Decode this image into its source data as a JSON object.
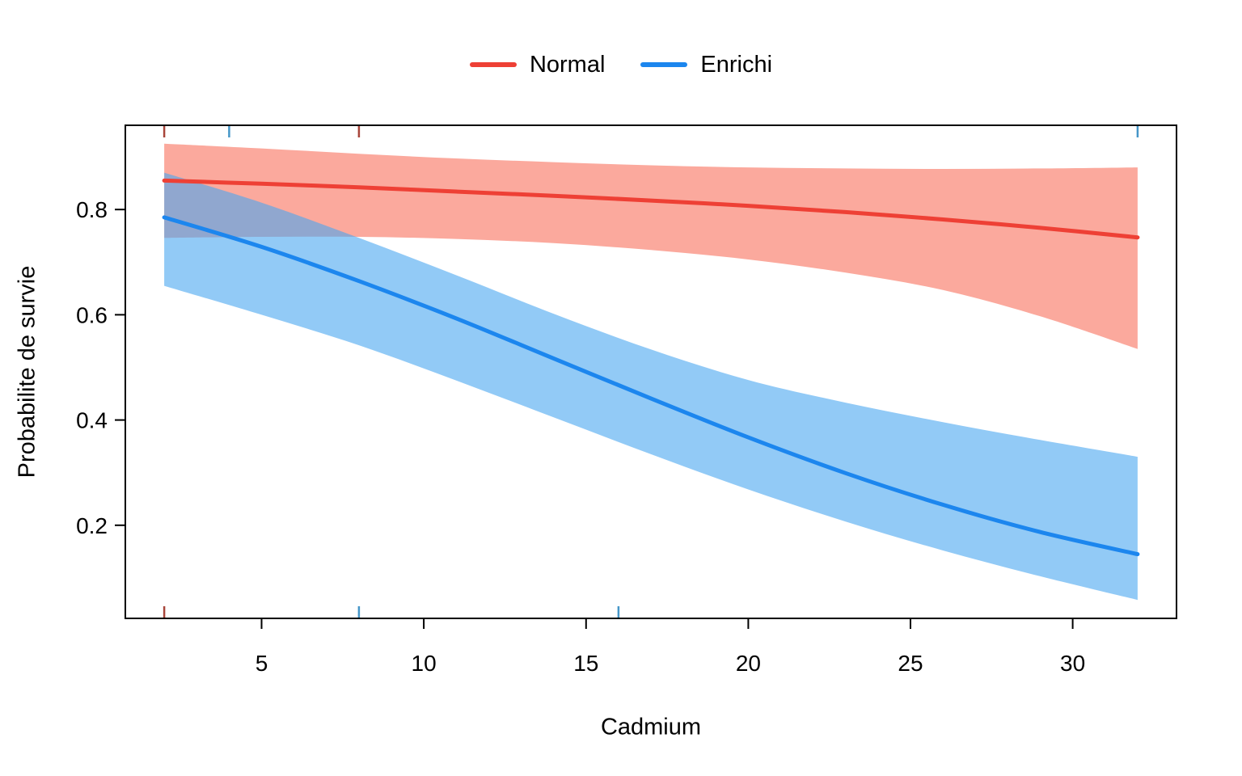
{
  "chart_data": {
    "type": "line",
    "title": "",
    "xlabel": "Cadmium",
    "ylabel": "Probabilite de survie",
    "xlim": [
      0.8,
      33.2
    ],
    "ylim": [
      0.023,
      0.96
    ],
    "x_ticks": [
      5,
      10,
      15,
      20,
      25,
      30
    ],
    "x_tick_labels": [
      "5",
      "10",
      "15",
      "20",
      "25",
      "30"
    ],
    "y_ticks": [
      0.2,
      0.4,
      0.6,
      0.8
    ],
    "y_tick_labels": [
      "0.2",
      "0.4",
      "0.6",
      "0.8"
    ],
    "grid": false,
    "legend_position": "top-center",
    "x": [
      2,
      5,
      8,
      11,
      14,
      17,
      20,
      23,
      26,
      29,
      32
    ],
    "series": [
      {
        "name": "Normal",
        "color": "#EE4035",
        "band_color": "#F8705C",
        "band_opacity": 0.6,
        "values": [
          0.855,
          0.849,
          0.842,
          0.834,
          0.826,
          0.817,
          0.807,
          0.795,
          0.781,
          0.765,
          0.747
        ],
        "upper": [
          0.925,
          0.916,
          0.906,
          0.897,
          0.89,
          0.884,
          0.88,
          0.878,
          0.877,
          0.878,
          0.88
        ],
        "lower": [
          0.746,
          0.748,
          0.748,
          0.744,
          0.736,
          0.723,
          0.705,
          0.68,
          0.647,
          0.597,
          0.535
        ]
      },
      {
        "name": "Enrichi",
        "color": "#1C86EE",
        "band_color": "#4AA7F0",
        "band_opacity": 0.6,
        "values": [
          0.785,
          0.729,
          0.664,
          0.593,
          0.517,
          0.441,
          0.367,
          0.299,
          0.239,
          0.187,
          0.145
        ],
        "upper": [
          0.87,
          0.813,
          0.746,
          0.675,
          0.602,
          0.534,
          0.476,
          0.433,
          0.396,
          0.362,
          0.33
        ],
        "lower": [
          0.655,
          0.6,
          0.542,
          0.475,
          0.405,
          0.335,
          0.268,
          0.207,
          0.152,
          0.103,
          0.058
        ]
      }
    ],
    "rug_top": [
      {
        "x": 2,
        "color": "#A8453A"
      },
      {
        "x": 4,
        "color": "#4596C8"
      },
      {
        "x": 8,
        "color": "#A8453A"
      },
      {
        "x": 32,
        "color": "#4596C8"
      }
    ],
    "rug_bottom": [
      {
        "x": 2,
        "color": "#A8453A"
      },
      {
        "x": 8,
        "color": "#4596C8"
      },
      {
        "x": 16,
        "color": "#4596C8"
      }
    ]
  },
  "legend": {
    "items": [
      {
        "label": "Normal"
      },
      {
        "label": "Enrichi"
      }
    ]
  }
}
